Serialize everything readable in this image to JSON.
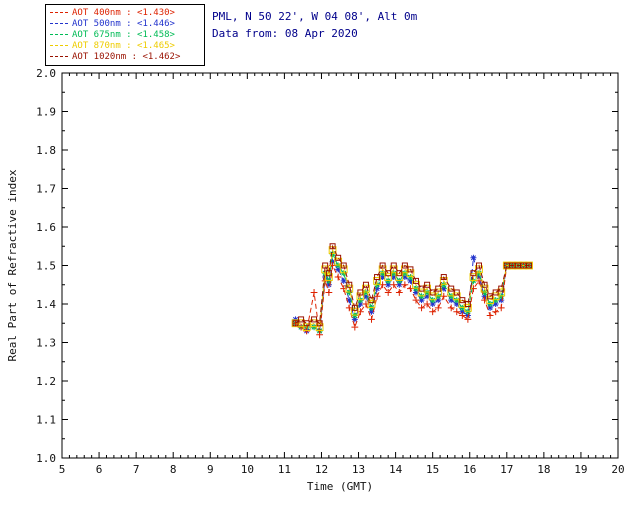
{
  "header": {
    "line1": "PML, N 50 22', W 04 08', Alt 0m",
    "line2": "Data from: 08 Apr 2020",
    "text_color": "#00008b"
  },
  "legend": {
    "items": [
      {
        "label": "AOT  400nm : <1.430>",
        "color": "#dd2200"
      },
      {
        "label": "AOT  500nm : <1.446>",
        "color": "#2233cc"
      },
      {
        "label": "AOT  675nm : <1.458>",
        "color": "#00bb55"
      },
      {
        "label": "AOT  870nm : <1.465>",
        "color": "#eecc00"
      },
      {
        "label": "AOT 1020nm : <1.462>",
        "color": "#991100"
      }
    ]
  },
  "chart_data": {
    "type": "line",
    "title": "",
    "xlabel": "Time (GMT)",
    "ylabel": "Real Part of Refractive index",
    "xlim": [
      5,
      20
    ],
    "ylim": [
      1.0,
      2.0
    ],
    "xticks": [
      5,
      6,
      7,
      8,
      9,
      10,
      11,
      12,
      13,
      14,
      15,
      16,
      17,
      18,
      19,
      20
    ],
    "yticks": [
      1.0,
      1.1,
      1.2,
      1.3,
      1.4,
      1.5,
      1.6,
      1.7,
      1.8,
      1.9,
      2.0
    ],
    "grid": false,
    "legend_position": "top-left",
    "x": [
      11.3,
      11.45,
      11.6,
      11.8,
      11.95,
      12.1,
      12.2,
      12.3,
      12.45,
      12.6,
      12.75,
      12.9,
      13.05,
      13.2,
      13.35,
      13.5,
      13.65,
      13.8,
      13.95,
      14.1,
      14.25,
      14.4,
      14.55,
      14.7,
      14.85,
      15.0,
      15.15,
      15.3,
      15.5,
      15.65,
      15.8,
      15.95,
      16.1,
      16.25,
      16.4,
      16.55,
      16.7,
      16.85,
      17.0,
      17.15,
      17.3,
      17.45,
      17.6
    ],
    "series": [
      {
        "name": "AOT 400nm",
        "mean": "<1.430>",
        "color": "#dd2200",
        "marker": "plus",
        "values": [
          1.35,
          1.34,
          1.33,
          1.43,
          1.32,
          1.46,
          1.43,
          1.5,
          1.47,
          1.44,
          1.39,
          1.34,
          1.38,
          1.4,
          1.36,
          1.42,
          1.45,
          1.43,
          1.45,
          1.43,
          1.45,
          1.44,
          1.41,
          1.39,
          1.4,
          1.38,
          1.39,
          1.42,
          1.39,
          1.38,
          1.37,
          1.36,
          1.44,
          1.46,
          1.41,
          1.37,
          1.38,
          1.39,
          1.5,
          1.5,
          1.5,
          1.5,
          1.5
        ]
      },
      {
        "name": "AOT 500nm",
        "mean": "<1.446>",
        "color": "#2233cc",
        "marker": "asterisk",
        "values": [
          1.36,
          1.34,
          1.33,
          1.34,
          1.33,
          1.47,
          1.45,
          1.51,
          1.49,
          1.46,
          1.41,
          1.36,
          1.4,
          1.42,
          1.38,
          1.44,
          1.47,
          1.45,
          1.47,
          1.45,
          1.47,
          1.46,
          1.43,
          1.41,
          1.42,
          1.4,
          1.41,
          1.44,
          1.41,
          1.4,
          1.38,
          1.37,
          1.52,
          1.47,
          1.42,
          1.39,
          1.4,
          1.41,
          1.5,
          1.5,
          1.5,
          1.5,
          1.5
        ]
      },
      {
        "name": "AOT 675nm",
        "mean": "<1.458>",
        "color": "#00bb55",
        "marker": "asterisk",
        "values": [
          1.35,
          1.34,
          1.34,
          1.34,
          1.33,
          1.48,
          1.46,
          1.53,
          1.5,
          1.48,
          1.43,
          1.37,
          1.41,
          1.43,
          1.39,
          1.45,
          1.48,
          1.46,
          1.48,
          1.46,
          1.48,
          1.47,
          1.44,
          1.42,
          1.43,
          1.41,
          1.42,
          1.45,
          1.42,
          1.41,
          1.39,
          1.38,
          1.46,
          1.48,
          1.43,
          1.4,
          1.41,
          1.42,
          1.5,
          1.5,
          1.5,
          1.5,
          1.5
        ]
      },
      {
        "name": "AOT 870nm",
        "mean": "<1.465>",
        "color": "#eecc00",
        "marker": "square",
        "values": [
          1.35,
          1.35,
          1.34,
          1.35,
          1.34,
          1.49,
          1.47,
          1.54,
          1.51,
          1.49,
          1.44,
          1.38,
          1.42,
          1.44,
          1.4,
          1.46,
          1.49,
          1.47,
          1.49,
          1.47,
          1.49,
          1.48,
          1.45,
          1.43,
          1.44,
          1.42,
          1.43,
          1.46,
          1.43,
          1.42,
          1.4,
          1.39,
          1.47,
          1.49,
          1.44,
          1.41,
          1.42,
          1.43,
          1.5,
          1.5,
          1.5,
          1.5,
          1.5
        ]
      },
      {
        "name": "AOT 1020nm",
        "mean": "<1.462>",
        "color": "#991100",
        "marker": "square",
        "values": [
          1.35,
          1.36,
          1.35,
          1.36,
          1.35,
          1.5,
          1.48,
          1.55,
          1.52,
          1.5,
          1.45,
          1.39,
          1.43,
          1.45,
          1.41,
          1.47,
          1.5,
          1.48,
          1.5,
          1.48,
          1.5,
          1.49,
          1.46,
          1.44,
          1.45,
          1.43,
          1.44,
          1.47,
          1.44,
          1.43,
          1.41,
          1.4,
          1.48,
          1.5,
          1.45,
          1.42,
          1.43,
          1.44,
          1.5,
          1.5,
          1.5,
          1.5,
          1.5
        ]
      }
    ]
  }
}
